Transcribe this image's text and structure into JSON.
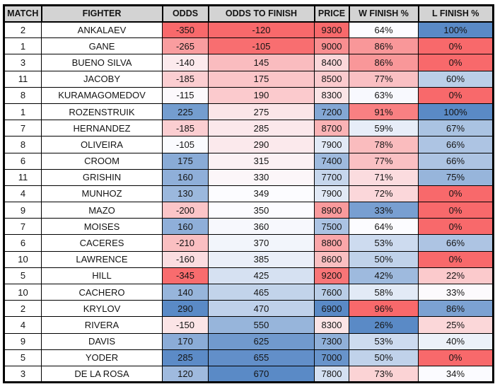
{
  "table": {
    "style": {
      "page_bg": "#FFFFFF",
      "header_bg": "#D3D3D3",
      "grid_color": "#000000",
      "text_color": "#141414",
      "scale_red": "#F8696B",
      "scale_white": "#FCFCFF",
      "scale_blue": "#5A8AC6"
    },
    "columns": [
      {
        "key": "match",
        "label": "MATCH"
      },
      {
        "key": "fighter",
        "label": "FIGHTER"
      },
      {
        "key": "odds",
        "label": "ODDS",
        "scale": {
          "min": -350,
          "mid": -110,
          "max": 290,
          "min_color": "#F8696B",
          "mid_color": "#FCFCFF",
          "max_color": "#5A8AC6"
        }
      },
      {
        "key": "odds_to_finish",
        "label": "ODDS TO FINISH",
        "scale": {
          "min": -120,
          "mid": 349.5,
          "max": 670,
          "min_color": "#F8696B",
          "mid_color": "#FCFCFF",
          "max_color": "#5A8AC6"
        }
      },
      {
        "key": "price",
        "label": "PRICE",
        "scale": {
          "min": 6900,
          "mid": 8100,
          "max": 9300,
          "min_color": "#5A8AC6",
          "mid_color": "#FCFCFF",
          "max_color": "#F8696B"
        }
      },
      {
        "key": "w_finish",
        "label": "W FINISH %",
        "scale": {
          "min": 26,
          "mid": 64,
          "max": 96,
          "min_color": "#5A8AC6",
          "mid_color": "#FCFCFF",
          "max_color": "#F8696B"
        }
      },
      {
        "key": "l_finish",
        "label": "L FINISH %",
        "scale": {
          "min": 0,
          "mid": 33.5,
          "max": 100,
          "min_color": "#F8696B",
          "mid_color": "#FCFCFF",
          "max_color": "#5A8AC6"
        }
      }
    ],
    "rows": [
      {
        "match": "2",
        "fighter": "ANKALAEV",
        "odds": "-350",
        "odds_to_finish": "-120",
        "price": "9300",
        "w_finish": "64%",
        "l_finish": "100%"
      },
      {
        "match": "1",
        "fighter": "GANE",
        "odds": "-265",
        "odds_to_finish": "-105",
        "price": "9000",
        "w_finish": "86%",
        "l_finish": "0%"
      },
      {
        "match": "3",
        "fighter": "BUENO SILVA",
        "odds": "-140",
        "odds_to_finish": "145",
        "price": "8400",
        "w_finish": "86%",
        "l_finish": "0%"
      },
      {
        "match": "11",
        "fighter": "JACOBY",
        "odds": "-185",
        "odds_to_finish": "175",
        "price": "8500",
        "w_finish": "77%",
        "l_finish": "60%"
      },
      {
        "match": "8",
        "fighter": "KURAMAGOMEDOV",
        "odds": "-115",
        "odds_to_finish": "190",
        "price": "8300",
        "w_finish": "63%",
        "l_finish": "0%"
      },
      {
        "match": "1",
        "fighter": "ROZENSTRUIK",
        "odds": "225",
        "odds_to_finish": "275",
        "price": "7200",
        "w_finish": "91%",
        "l_finish": "100%"
      },
      {
        "match": "7",
        "fighter": "HERNANDEZ",
        "odds": "-185",
        "odds_to_finish": "285",
        "price": "8700",
        "w_finish": "59%",
        "l_finish": "67%"
      },
      {
        "match": "8",
        "fighter": "OLIVEIRA",
        "odds": "-105",
        "odds_to_finish": "290",
        "price": "7900",
        "w_finish": "78%",
        "l_finish": "66%"
      },
      {
        "match": "6",
        "fighter": "CROOM",
        "odds": "175",
        "odds_to_finish": "315",
        "price": "7400",
        "w_finish": "77%",
        "l_finish": "66%"
      },
      {
        "match": "11",
        "fighter": "GRISHIN",
        "odds": "160",
        "odds_to_finish": "330",
        "price": "7700",
        "w_finish": "71%",
        "l_finish": "75%"
      },
      {
        "match": "4",
        "fighter": "MUNHOZ",
        "odds": "130",
        "odds_to_finish": "349",
        "price": "7900",
        "w_finish": "72%",
        "l_finish": "0%"
      },
      {
        "match": "9",
        "fighter": "MAZO",
        "odds": "-200",
        "odds_to_finish": "350",
        "price": "8900",
        "w_finish": "33%",
        "l_finish": "0%"
      },
      {
        "match": "7",
        "fighter": "MOISES",
        "odds": "160",
        "odds_to_finish": "360",
        "price": "7500",
        "w_finish": "64%",
        "l_finish": "0%"
      },
      {
        "match": "6",
        "fighter": "CACERES",
        "odds": "-210",
        "odds_to_finish": "370",
        "price": "8800",
        "w_finish": "53%",
        "l_finish": "66%"
      },
      {
        "match": "10",
        "fighter": "LAWRENCE",
        "odds": "-160",
        "odds_to_finish": "385",
        "price": "8600",
        "w_finish": "50%",
        "l_finish": "0%"
      },
      {
        "match": "5",
        "fighter": "HILL",
        "odds": "-345",
        "odds_to_finish": "425",
        "price": "9200",
        "w_finish": "42%",
        "l_finish": "22%"
      },
      {
        "match": "10",
        "fighter": "CACHERO",
        "odds": "140",
        "odds_to_finish": "465",
        "price": "7600",
        "w_finish": "58%",
        "l_finish": "33%"
      },
      {
        "match": "2",
        "fighter": "KRYLOV",
        "odds": "290",
        "odds_to_finish": "470",
        "price": "6900",
        "w_finish": "96%",
        "l_finish": "86%"
      },
      {
        "match": "4",
        "fighter": "RIVERA",
        "odds": "-150",
        "odds_to_finish": "550",
        "price": "8300",
        "w_finish": "26%",
        "l_finish": "25%"
      },
      {
        "match": "9",
        "fighter": "DAVIS",
        "odds": "170",
        "odds_to_finish": "625",
        "price": "7300",
        "w_finish": "53%",
        "l_finish": "40%"
      },
      {
        "match": "5",
        "fighter": "YODER",
        "odds": "285",
        "odds_to_finish": "655",
        "price": "7000",
        "w_finish": "50%",
        "l_finish": "0%"
      },
      {
        "match": "3",
        "fighter": "DE LA ROSA",
        "odds": "120",
        "odds_to_finish": "670",
        "price": "7800",
        "w_finish": "73%",
        "l_finish": "34%"
      }
    ]
  }
}
